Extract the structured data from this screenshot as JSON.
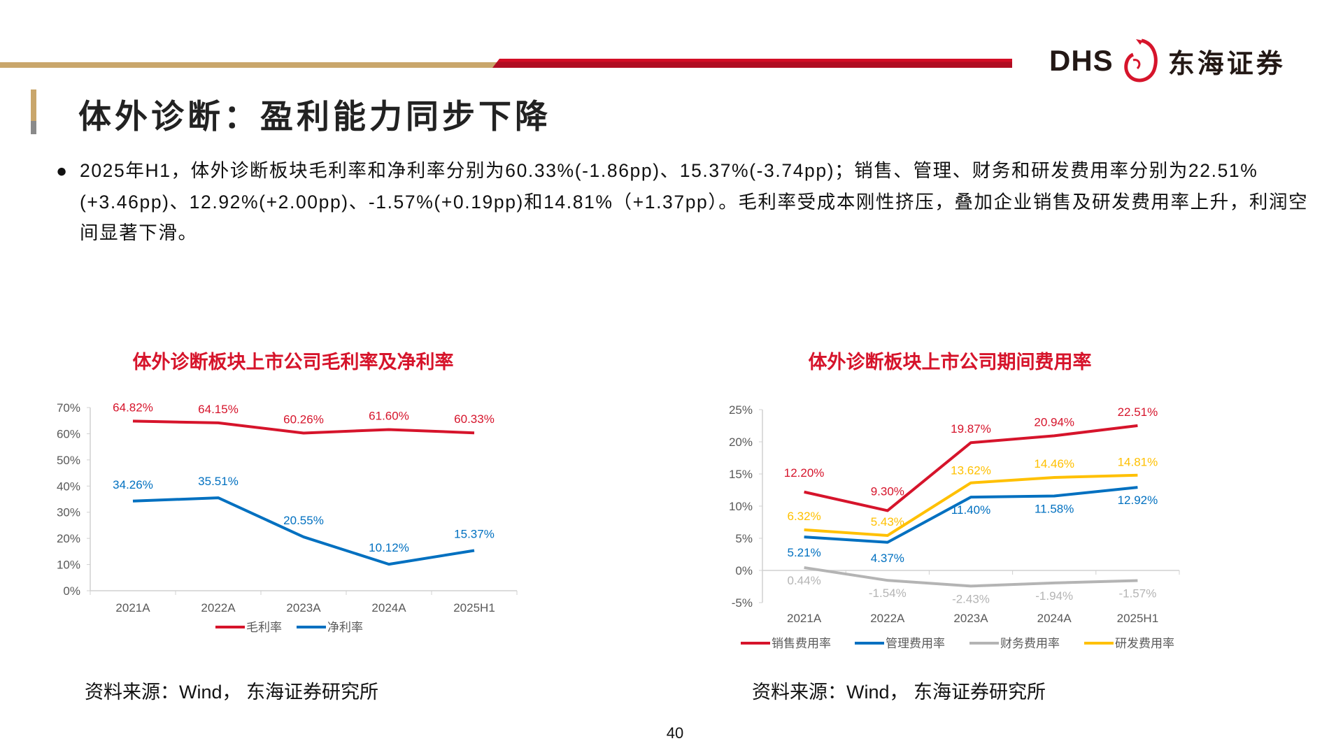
{
  "header": {
    "logo_latin": "DHS",
    "logo_cn": "东海证券",
    "colors": {
      "gold": "#c9a66b",
      "red": "#c8102e"
    }
  },
  "page_title": "体外诊断：盈利能力同步下降",
  "bullet": "2025年H1，体外诊断板块毛利率和净利率分别为60.33%(-1.86pp)、15.37%(-3.74pp)；销售、管理、财务和研发费用率分别为22.51%(+3.46pp)、12.92%(+2.00pp)、-1.57%(+0.19pp)和14.81%（+1.37pp）。毛利率受成本刚性挤压，叠加企业销售及研发费用率上升，利润空间显著下滑。",
  "page_number": "40",
  "chart_data": [
    {
      "type": "line",
      "title": "体外诊断板块上市公司毛利率及净利率",
      "categories": [
        "2021A",
        "2022A",
        "2023A",
        "2024A",
        "2025H1"
      ],
      "ylim": [
        0,
        70
      ],
      "yticks": [
        "0%",
        "10%",
        "20%",
        "30%",
        "40%",
        "50%",
        "60%",
        "70%"
      ],
      "grid": false,
      "legend": "bottom",
      "series": [
        {
          "name": "毛利率",
          "color": "#d6142b",
          "values": [
            64.82,
            64.15,
            60.26,
            61.6,
            60.33
          ],
          "labels": [
            "64.82%",
            "64.15%",
            "60.26%",
            "61.60%",
            "60.33%"
          ]
        },
        {
          "name": "净利率",
          "color": "#0070c0",
          "values": [
            34.26,
            35.51,
            20.55,
            10.12,
            15.37
          ],
          "labels": [
            "34.26%",
            "35.51%",
            "20.55%",
            "10.12%",
            "15.37%"
          ]
        }
      ],
      "source": "资料来源：Wind， 东海证券研究所"
    },
    {
      "type": "line",
      "title": "体外诊断板块上市公司期间费用率",
      "categories": [
        "2021A",
        "2022A",
        "2023A",
        "2024A",
        "2025H1"
      ],
      "ylim": [
        -5,
        25
      ],
      "yticks": [
        "-5%",
        "0%",
        "5%",
        "10%",
        "15%",
        "20%",
        "25%"
      ],
      "grid": false,
      "legend": "bottom",
      "series": [
        {
          "name": "销售费用率",
          "color": "#d6142b",
          "values": [
            12.2,
            9.3,
            19.87,
            20.94,
            22.51
          ],
          "labels": [
            "12.20%",
            "9.30%",
            "19.87%",
            "20.94%",
            "22.51%"
          ]
        },
        {
          "name": "管理费用率",
          "color": "#0070c0",
          "values": [
            5.21,
            4.37,
            11.4,
            11.58,
            12.92
          ],
          "labels": [
            "5.21%",
            "4.37%",
            "11.40%",
            "11.58%",
            "12.92%"
          ]
        },
        {
          "name": "财务费用率",
          "color": "#b4b4b4",
          "values": [
            0.44,
            -1.54,
            -2.43,
            -1.94,
            -1.57
          ],
          "labels": [
            "0.44%",
            "-1.54%",
            "-2.43%",
            "-1.94%",
            "-1.57%"
          ]
        },
        {
          "name": "研发费用率",
          "color": "#ffc000",
          "values": [
            6.32,
            5.43,
            13.62,
            14.46,
            14.81
          ],
          "labels": [
            "6.32%",
            "5.43%",
            "13.62%",
            "14.46%",
            "14.81%"
          ]
        }
      ],
      "source": "资料来源：Wind， 东海证券研究所"
    }
  ]
}
